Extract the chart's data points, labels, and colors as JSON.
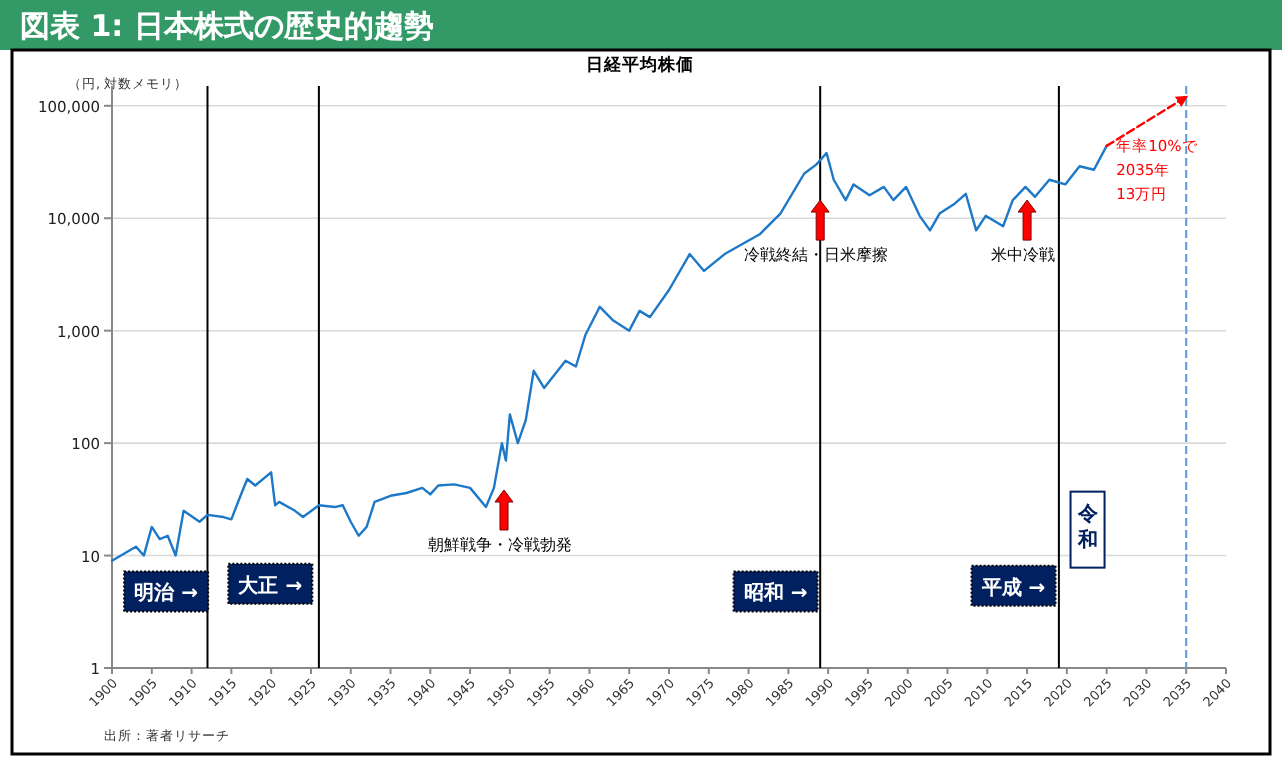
{
  "chart_data": {
    "type": "line",
    "title": "図表 1: 日本株式の歴史的趨勢",
    "subtitle": "日経平均株価",
    "ylabel": "（円, 対数メモリ）",
    "log": "y",
    "grid": "y",
    "xlim": [
      1900,
      2040
    ],
    "xticks": [
      1900,
      1905,
      1910,
      1915,
      1920,
      1925,
      1930,
      1935,
      1940,
      1945,
      1950,
      1955,
      1960,
      1965,
      1970,
      1975,
      1980,
      1985,
      1990,
      1995,
      2000,
      2005,
      2010,
      2015,
      2020,
      2025,
      2030,
      2035,
      2040
    ],
    "ylim": [
      1,
      150000
    ],
    "yticks": [
      {
        "value": 1,
        "label": "1"
      },
      {
        "value": 10,
        "label": "10"
      },
      {
        "value": 100,
        "label": "100"
      },
      {
        "value": 1000,
        "label": "1,000"
      },
      {
        "value": 10000,
        "label": "10,000"
      },
      {
        "value": 100000,
        "label": "100,000"
      }
    ],
    "series": [
      {
        "color": "#1e78c8",
        "x": [
          1900,
          1903,
          1904,
          1905,
          1906,
          1907,
          1908,
          1909,
          1911,
          1912,
          1914,
          1915,
          1916,
          1917,
          1918,
          1920,
          1920.5,
          1921,
          1923,
          1924,
          1926,
          1928,
          1929,
          1930,
          1931,
          1932,
          1933,
          1935,
          1937,
          1939,
          1940,
          1941,
          1943,
          1945,
          1947,
          1948,
          1949,
          1949.5,
          1950,
          1951,
          1952,
          1953,
          1954.3,
          1957,
          1958.3,
          1959.5,
          1961.3,
          1963,
          1965,
          1966.3,
          1967.6,
          1970,
          1972.6,
          1974.4,
          1977,
          1981.4,
          1984,
          1987,
          1988.5,
          1989.8,
          1990.7,
          1992.2,
          1993.2,
          1995.2,
          1997,
          1998.2,
          1999.8,
          2001.5,
          2002.8,
          2004,
          2005.8,
          2007.3,
          2008.6,
          2009.8,
          2012,
          2013.2,
          2014.8,
          2016,
          2017.8,
          2019.8,
          2021.6,
          2023.4,
          2025
        ],
        "values": [
          9,
          12,
          10,
          18,
          14,
          15,
          10,
          25,
          20,
          23,
          22,
          21,
          32,
          48,
          42,
          55,
          28,
          30,
          25,
          22,
          28,
          27,
          28,
          20,
          15,
          18,
          30,
          34,
          36,
          40,
          35,
          42,
          43,
          40,
          27,
          40,
          100,
          70,
          180,
          100,
          160,
          440,
          310,
          540,
          480,
          920,
          1630,
          1230,
          1000,
          1500,
          1320,
          2300,
          4800,
          3400,
          4800,
          7200,
          11000,
          25000,
          30000,
          38000,
          22000,
          14500,
          20000,
          16000,
          19000,
          14500,
          19000,
          10500,
          7800,
          11000,
          13300,
          16500,
          7800,
          10500,
          8500,
          14500,
          19000,
          15500,
          22000,
          20000,
          29000,
          27000,
          44000
        ]
      },
      {
        "type": "line",
        "color": "#ff0000",
        "line_style": "dashed",
        "x": [
          2025,
          2035
        ],
        "values": [
          44000,
          120000
        ]
      }
    ],
    "ref_lines": [
      {
        "axis": "x",
        "value": 1912,
        "color": "#000000"
      },
      {
        "axis": "x",
        "value": 1926,
        "color": "#000000"
      },
      {
        "axis": "x",
        "value": 1989,
        "color": "#000000"
      },
      {
        "axis": "x",
        "value": 2019,
        "color": "#000000"
      },
      {
        "axis": "x",
        "value": 2035,
        "color": "#5b9bd5",
        "line_style": "dashed"
      }
    ],
    "annotations": [
      "出所：著者リサーチ",
      {
        "text": "明治 →",
        "x": 1906.8,
        "y": 4.8
      },
      {
        "text": "大正 →",
        "x": 1919.9,
        "y": 5.6
      },
      {
        "text": "昭和 →",
        "x": 1983.4,
        "y": 4.8
      },
      {
        "text": "平成 →",
        "x": 2013.3,
        "y": 5.4
      },
      {
        "text": "令和",
        "x": 2022.6,
        "y": 17
      },
      "朝鮮戦争・冷戦勃発",
      {
        "text": "冷戦終結・日米摩擦",
        "x": 1989,
        "y": 14500
      },
      {
        "text": "米中冷戦",
        "x": 2015,
        "y": 14500
      },
      "年率10%で",
      "2035年",
      "13万円"
    ]
  }
}
